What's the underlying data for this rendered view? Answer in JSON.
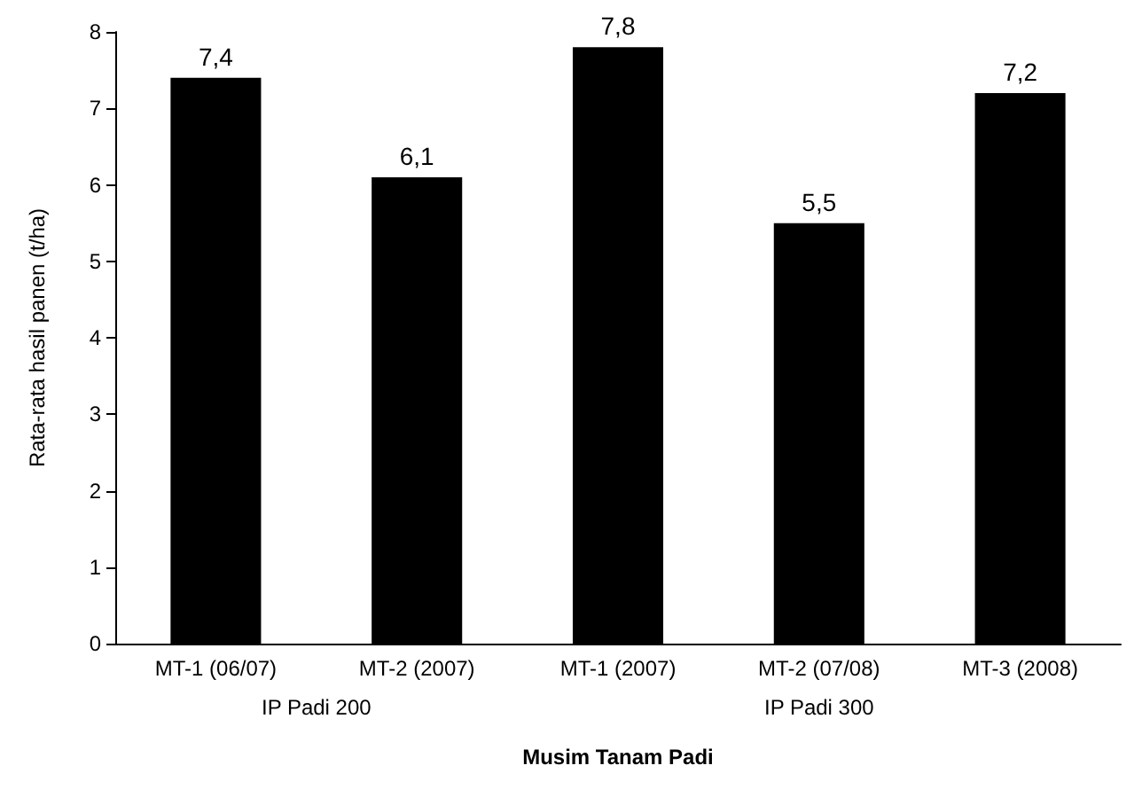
{
  "chart_data": {
    "type": "bar",
    "xlabel": "Musim Tanam Padi",
    "ylabel": "Rata-rata hasil panen (t/ha)",
    "categories": [
      "MT-1 (06/07)",
      "MT-2 (2007)",
      "MT-1 (2007)",
      "MT-2 (07/08)",
      "MT-3 (2008)"
    ],
    "values": [
      7.4,
      6.1,
      7.8,
      5.5,
      7.2
    ],
    "value_labels": [
      "7,4",
      "6,1",
      "7,8",
      "5,5",
      "7,2"
    ],
    "color": "#000000",
    "ylim": [
      0,
      8
    ],
    "yticks": [
      0,
      1,
      2,
      3,
      4,
      5,
      6,
      7,
      8
    ],
    "grid": false,
    "annotations": [
      "IP Padi 200",
      "IP Padi 300"
    ]
  }
}
